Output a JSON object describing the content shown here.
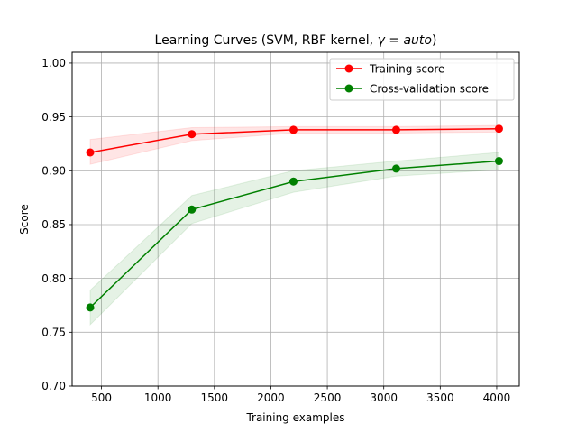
{
  "chart_data": {
    "type": "line",
    "title_prefix": "Learning Curves (SVM, RBF kernel, ",
    "title_math": "γ = auto",
    "title_suffix": ")",
    "xlabel": "Training examples",
    "ylabel": "Score",
    "xlim": [
      240,
      4200
    ],
    "ylim": [
      0.7,
      1.01
    ],
    "x_ticks": [
      500,
      1000,
      1500,
      2000,
      2500,
      3000,
      3500,
      4000
    ],
    "y_ticks": [
      0.7,
      0.75,
      0.8,
      0.85,
      0.9,
      0.95,
      1.0
    ],
    "y_tick_labels": [
      "0.70",
      "0.75",
      "0.80",
      "0.85",
      "0.90",
      "0.95",
      "1.00"
    ],
    "grid": true,
    "legend_position": "upper right",
    "x": [
      400,
      1300,
      2200,
      3110,
      4020
    ],
    "series": [
      {
        "name": "Training score",
        "color": "#ff0000",
        "band_color": "#ff0000",
        "values": [
          0.917,
          0.934,
          0.938,
          0.938,
          0.939
        ],
        "band_lower": [
          0.906,
          0.928,
          0.935,
          0.935,
          0.936
        ],
        "band_upper": [
          0.929,
          0.94,
          0.941,
          0.941,
          0.942
        ]
      },
      {
        "name": "Cross-validation score",
        "color": "#008000",
        "band_color": "#008000",
        "values": [
          0.773,
          0.864,
          0.89,
          0.902,
          0.909
        ],
        "band_lower": [
          0.757,
          0.851,
          0.88,
          0.895,
          0.901
        ],
        "band_upper": [
          0.789,
          0.877,
          0.9,
          0.909,
          0.917
        ]
      }
    ]
  }
}
